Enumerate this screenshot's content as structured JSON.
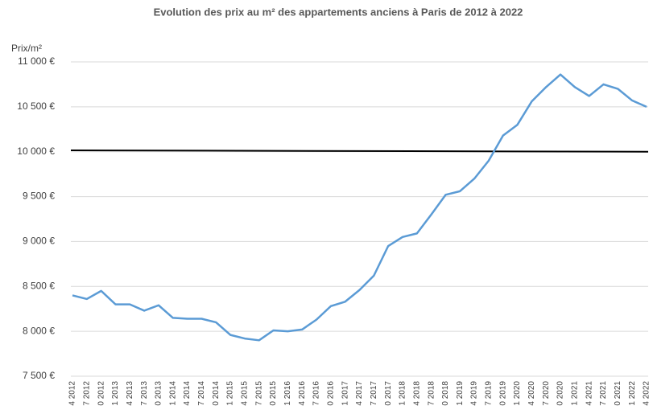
{
  "chart_data": {
    "type": "line",
    "title": "Evolution des prix au m² des appartements anciens à Paris de 2012 à 2022",
    "y_label": "Prix/m²",
    "categories": [
      "4 2012",
      "7 2012",
      "0 2012",
      "1 2013",
      "4 2013",
      "7 2013",
      "0 2013",
      "1 2014",
      "4 2014",
      "7 2014",
      "0 2014",
      "1 2015",
      "4 2015",
      "7 2015",
      "0 2015",
      "1 2016",
      "4 2016",
      "7 2016",
      "0 2016",
      "1 2017",
      "4 2017",
      "7 2017",
      "0 2017",
      "1 2018",
      "4 2018",
      "7 2018",
      "0 2018",
      "1 2019",
      "4 2019",
      "7 2019",
      "0 2019",
      "1 2020",
      "4 2020",
      "7 2020",
      "0 2020",
      "1 2021",
      "4 2021",
      "7 2021",
      "0 2021",
      "1 2022",
      "4 2022"
    ],
    "series": [
      {
        "color": "#5b9bd5",
        "values": [
          8400,
          8360,
          8450,
          8300,
          8300,
          8230,
          8290,
          8150,
          8140,
          8140,
          8100,
          7960,
          7920,
          7900,
          8010,
          8000,
          8020,
          8130,
          8280,
          8330,
          8460,
          8620,
          8950,
          9050,
          9090,
          9300,
          9520,
          9560,
          9700,
          9900,
          10180,
          10300,
          10560,
          10720,
          10860,
          10720,
          10620,
          10750,
          10700,
          10570,
          10500
        ]
      }
    ],
    "reference_line": {
      "start": 10015,
      "end": 10000,
      "color": "#000000"
    },
    "ylim": [
      7500,
      11000
    ],
    "yticks": [
      {
        "value": 7500,
        "label": "7 500 €"
      },
      {
        "value": 8000,
        "label": "8 000 €"
      },
      {
        "value": 8500,
        "label": "8 500 €"
      },
      {
        "value": 9000,
        "label": "9 000 €"
      },
      {
        "value": 9500,
        "label": "9 500 €"
      },
      {
        "value": 10000,
        "label": "10 000 €"
      },
      {
        "value": 10500,
        "label": "10 500 €"
      },
      {
        "value": 11000,
        "label": "11 000 €"
      }
    ],
    "grid": true
  }
}
